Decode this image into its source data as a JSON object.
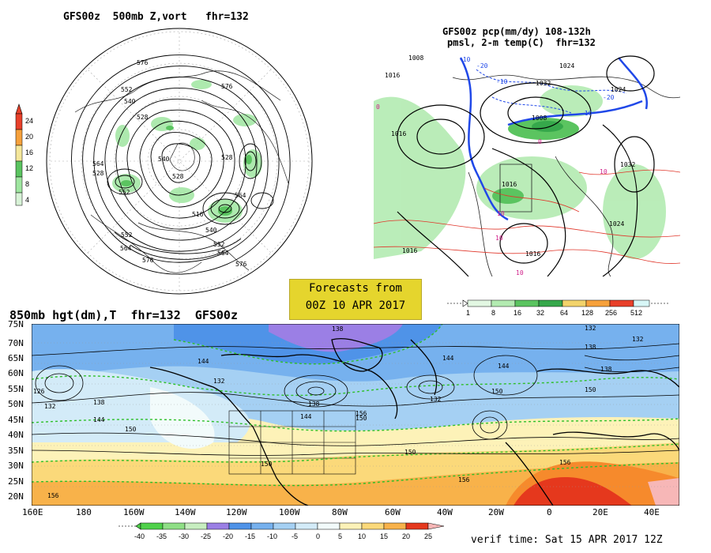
{
  "panels": {
    "top_left": {
      "title": "GFS00z  500mb Z,vort   fhr=132",
      "colorbar_ticks": [
        "24",
        "20",
        "16",
        "12",
        "8",
        "4"
      ],
      "colorbar_colors": [
        "#e8402a",
        "#f6a13b",
        "#f5e79b",
        "#5bc460",
        "#9fe6a0",
        "#d8f3d7"
      ],
      "contour_labels": [
        "576",
        "576",
        "564",
        "552",
        "540",
        "528",
        "528",
        "540",
        "528",
        "528",
        "552",
        "564",
        "540",
        "516",
        "552",
        "564",
        "552",
        "564",
        "576",
        "576"
      ]
    },
    "top_right": {
      "title_line1": "GFS00z pcp(mm/dy) 108-132h",
      "title_line2": "pmsl, 2-m temp(C)  fhr=132",
      "colorbar_ticks": [
        "1",
        "8",
        "16",
        "32",
        "64",
        "128",
        "256",
        "512"
      ],
      "colorbar_colors": [
        "#e2f7e2",
        "#b3ebb1",
        "#5bc460",
        "#36a84b",
        "#f2d36b",
        "#f6a13b",
        "#e8402a",
        "#d7f6f6"
      ],
      "labels": [
        "1008",
        "1016",
        "1016",
        "1016",
        "1032",
        "1024",
        "1008",
        "1032",
        "1024",
        "1016",
        "1016",
        "-10",
        "-20",
        "-10",
        "-20",
        "-10",
        "0",
        "0",
        "10",
        "10",
        "10",
        "10",
        "1024"
      ]
    },
    "forecast_box": {
      "line1": "Forecasts from",
      "line2": "00Z 10 APR 2017"
    },
    "bottom": {
      "title": "850mb hgt(dm),T  fhr=132  GFS00z",
      "lat_labels": [
        "75N",
        "70N",
        "65N",
        "60N",
        "55N",
        "50N",
        "45N",
        "40N",
        "35N",
        "30N",
        "25N",
        "20N"
      ],
      "lon_labels": [
        "160E",
        "180",
        "160W",
        "140W",
        "120W",
        "100W",
        "80W",
        "60W",
        "40W",
        "20W",
        "0",
        "20E",
        "40E"
      ],
      "colorbar_ticks": [
        "-40",
        "-35",
        "-30",
        "-25",
        "-20",
        "-15",
        "-10",
        "-5",
        "0",
        "5",
        "10",
        "15",
        "20",
        "25"
      ],
      "colorbar_colors": [
        "#4fd14a",
        "#8fdf86",
        "#c7eec0",
        "#9b7fe5",
        "#4f93e8",
        "#76b1ee",
        "#a5d0f3",
        "#d3ebf8",
        "#f2fbfb",
        "#fdf2b8",
        "#fbd97a",
        "#f8b24a",
        "#f68a2c",
        "#e5381d",
        "#f7b7b7"
      ],
      "contour_labels": [
        "126",
        "132",
        "138",
        "144",
        "144",
        "150",
        "132",
        "144",
        "138",
        "150",
        "132",
        "138",
        "144",
        "144",
        "150",
        "132",
        "138",
        "150",
        "150",
        "150",
        "156",
        "156",
        "156",
        "132",
        "138",
        "156"
      ],
      "verif_time": "verif time: Sat 15 APR 2017 12Z"
    }
  }
}
